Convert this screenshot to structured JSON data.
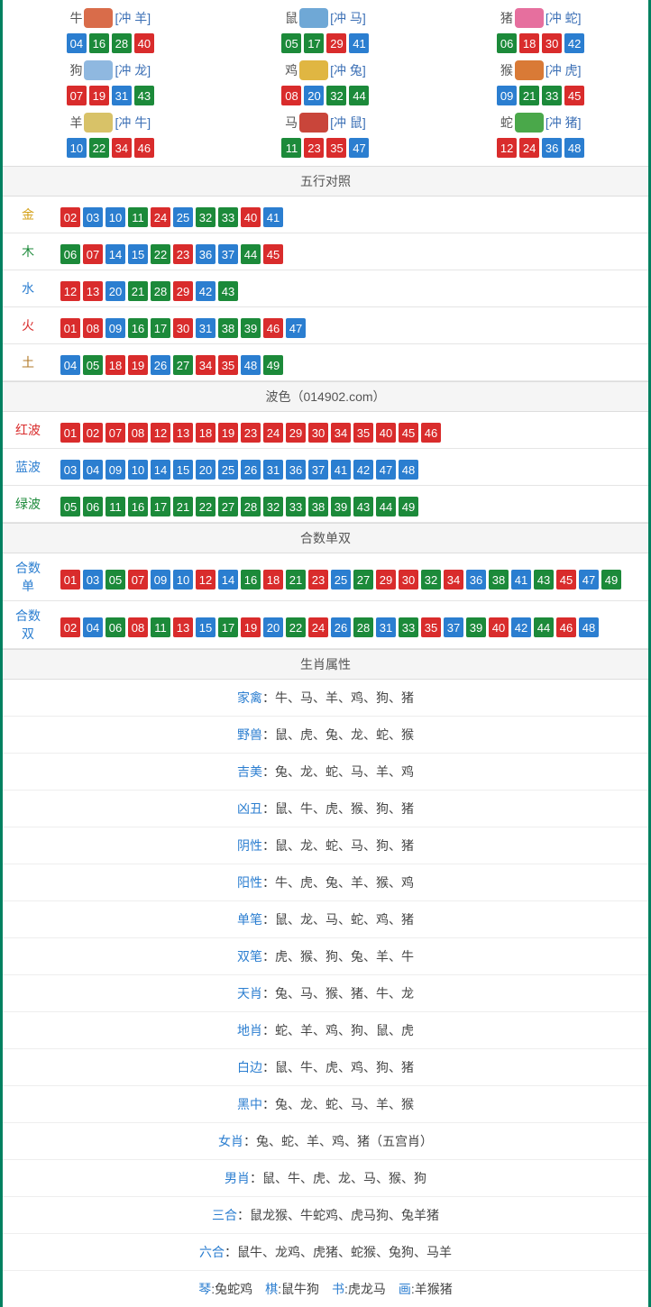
{
  "colors": {
    "red": "#d92c2c",
    "blue": "#2b7ed0",
    "green": "#1c8a3a"
  },
  "zodiac": [
    {
      "name": "牛",
      "icon_color": "#d96c4a",
      "tag": "[冲 羊]",
      "balls": [
        [
          "04",
          "blue"
        ],
        [
          "16",
          "green"
        ],
        [
          "28",
          "green"
        ],
        [
          "40",
          "red"
        ]
      ]
    },
    {
      "name": "鼠",
      "icon_color": "#6fa8d6",
      "tag": "[冲 马]",
      "balls": [
        [
          "05",
          "green"
        ],
        [
          "17",
          "green"
        ],
        [
          "29",
          "red"
        ],
        [
          "41",
          "blue"
        ]
      ]
    },
    {
      "name": "猪",
      "icon_color": "#e66f9e",
      "tag": "[冲 蛇]",
      "balls": [
        [
          "06",
          "green"
        ],
        [
          "18",
          "red"
        ],
        [
          "30",
          "red"
        ],
        [
          "42",
          "blue"
        ]
      ]
    },
    {
      "name": "狗",
      "icon_color": "#8fb8e0",
      "tag": "[冲 龙]",
      "balls": [
        [
          "07",
          "red"
        ],
        [
          "19",
          "red"
        ],
        [
          "31",
          "blue"
        ],
        [
          "43",
          "green"
        ]
      ]
    },
    {
      "name": "鸡",
      "icon_color": "#e0b642",
      "tag": "[冲 兔]",
      "balls": [
        [
          "08",
          "red"
        ],
        [
          "20",
          "blue"
        ],
        [
          "32",
          "green"
        ],
        [
          "44",
          "green"
        ]
      ]
    },
    {
      "name": "猴",
      "icon_color": "#d97a36",
      "tag": "[冲 虎]",
      "balls": [
        [
          "09",
          "blue"
        ],
        [
          "21",
          "green"
        ],
        [
          "33",
          "green"
        ],
        [
          "45",
          "red"
        ]
      ]
    },
    {
      "name": "羊",
      "icon_color": "#d8c268",
      "tag": "[冲 牛]",
      "balls": [
        [
          "10",
          "blue"
        ],
        [
          "22",
          "green"
        ],
        [
          "34",
          "red"
        ],
        [
          "46",
          "red"
        ]
      ]
    },
    {
      "name": "马",
      "icon_color": "#c9453a",
      "tag": "[冲 鼠]",
      "balls": [
        [
          "11",
          "green"
        ],
        [
          "23",
          "red"
        ],
        [
          "35",
          "red"
        ],
        [
          "47",
          "blue"
        ]
      ]
    },
    {
      "name": "蛇",
      "icon_color": "#4aa84a",
      "tag": "[冲 猪]",
      "balls": [
        [
          "12",
          "red"
        ],
        [
          "24",
          "red"
        ],
        [
          "36",
          "blue"
        ],
        [
          "48",
          "blue"
        ]
      ]
    }
  ],
  "wuxing": {
    "title": "五行对照",
    "rows": [
      {
        "label": "金",
        "cls": "c-gold",
        "balls": [
          [
            "02",
            "red"
          ],
          [
            "03",
            "blue"
          ],
          [
            "10",
            "blue"
          ],
          [
            "11",
            "green"
          ],
          [
            "24",
            "red"
          ],
          [
            "25",
            "blue"
          ],
          [
            "32",
            "green"
          ],
          [
            "33",
            "green"
          ],
          [
            "40",
            "red"
          ],
          [
            "41",
            "blue"
          ]
        ]
      },
      {
        "label": "木",
        "cls": "c-wood",
        "balls": [
          [
            "06",
            "green"
          ],
          [
            "07",
            "red"
          ],
          [
            "14",
            "blue"
          ],
          [
            "15",
            "blue"
          ],
          [
            "22",
            "green"
          ],
          [
            "23",
            "red"
          ],
          [
            "36",
            "blue"
          ],
          [
            "37",
            "blue"
          ],
          [
            "44",
            "green"
          ],
          [
            "45",
            "red"
          ]
        ]
      },
      {
        "label": "水",
        "cls": "c-water",
        "balls": [
          [
            "12",
            "red"
          ],
          [
            "13",
            "red"
          ],
          [
            "20",
            "blue"
          ],
          [
            "21",
            "green"
          ],
          [
            "28",
            "green"
          ],
          [
            "29",
            "red"
          ],
          [
            "42",
            "blue"
          ],
          [
            "43",
            "green"
          ]
        ]
      },
      {
        "label": "火",
        "cls": "c-fire",
        "balls": [
          [
            "01",
            "red"
          ],
          [
            "08",
            "red"
          ],
          [
            "09",
            "blue"
          ],
          [
            "16",
            "green"
          ],
          [
            "17",
            "green"
          ],
          [
            "30",
            "red"
          ],
          [
            "31",
            "blue"
          ],
          [
            "38",
            "green"
          ],
          [
            "39",
            "green"
          ],
          [
            "46",
            "red"
          ],
          [
            "47",
            "blue"
          ]
        ]
      },
      {
        "label": "土",
        "cls": "c-earth",
        "balls": [
          [
            "04",
            "blue"
          ],
          [
            "05",
            "green"
          ],
          [
            "18",
            "red"
          ],
          [
            "19",
            "red"
          ],
          [
            "26",
            "blue"
          ],
          [
            "27",
            "green"
          ],
          [
            "34",
            "red"
          ],
          [
            "35",
            "red"
          ],
          [
            "48",
            "blue"
          ],
          [
            "49",
            "green"
          ]
        ]
      }
    ]
  },
  "bose": {
    "title": "波色（014902.com）",
    "rows": [
      {
        "label": "红波",
        "cls": "c-red",
        "balls": [
          [
            "01",
            "red"
          ],
          [
            "02",
            "red"
          ],
          [
            "07",
            "red"
          ],
          [
            "08",
            "red"
          ],
          [
            "12",
            "red"
          ],
          [
            "13",
            "red"
          ],
          [
            "18",
            "red"
          ],
          [
            "19",
            "red"
          ],
          [
            "23",
            "red"
          ],
          [
            "24",
            "red"
          ],
          [
            "29",
            "red"
          ],
          [
            "30",
            "red"
          ],
          [
            "34",
            "red"
          ],
          [
            "35",
            "red"
          ],
          [
            "40",
            "red"
          ],
          [
            "45",
            "red"
          ],
          [
            "46",
            "red"
          ]
        ]
      },
      {
        "label": "蓝波",
        "cls": "c-blue",
        "balls": [
          [
            "03",
            "blue"
          ],
          [
            "04",
            "blue"
          ],
          [
            "09",
            "blue"
          ],
          [
            "10",
            "blue"
          ],
          [
            "14",
            "blue"
          ],
          [
            "15",
            "blue"
          ],
          [
            "20",
            "blue"
          ],
          [
            "25",
            "blue"
          ],
          [
            "26",
            "blue"
          ],
          [
            "31",
            "blue"
          ],
          [
            "36",
            "blue"
          ],
          [
            "37",
            "blue"
          ],
          [
            "41",
            "blue"
          ],
          [
            "42",
            "blue"
          ],
          [
            "47",
            "blue"
          ],
          [
            "48",
            "blue"
          ]
        ]
      },
      {
        "label": "绿波",
        "cls": "c-green",
        "balls": [
          [
            "05",
            "green"
          ],
          [
            "06",
            "green"
          ],
          [
            "11",
            "green"
          ],
          [
            "16",
            "green"
          ],
          [
            "17",
            "green"
          ],
          [
            "21",
            "green"
          ],
          [
            "22",
            "green"
          ],
          [
            "27",
            "green"
          ],
          [
            "28",
            "green"
          ],
          [
            "32",
            "green"
          ],
          [
            "33",
            "green"
          ],
          [
            "38",
            "green"
          ],
          [
            "39",
            "green"
          ],
          [
            "43",
            "green"
          ],
          [
            "44",
            "green"
          ],
          [
            "49",
            "green"
          ]
        ]
      }
    ]
  },
  "heshu": {
    "title": "合数单双",
    "rows": [
      {
        "label": "合数单",
        "cls": "c-blue",
        "balls": [
          [
            "01",
            "red"
          ],
          [
            "03",
            "blue"
          ],
          [
            "05",
            "green"
          ],
          [
            "07",
            "red"
          ],
          [
            "09",
            "blue"
          ],
          [
            "10",
            "blue"
          ],
          [
            "12",
            "red"
          ],
          [
            "14",
            "blue"
          ],
          [
            "16",
            "green"
          ],
          [
            "18",
            "red"
          ],
          [
            "21",
            "green"
          ],
          [
            "23",
            "red"
          ],
          [
            "25",
            "blue"
          ],
          [
            "27",
            "green"
          ],
          [
            "29",
            "red"
          ],
          [
            "30",
            "red"
          ],
          [
            "32",
            "green"
          ],
          [
            "34",
            "red"
          ],
          [
            "36",
            "blue"
          ],
          [
            "38",
            "green"
          ],
          [
            "41",
            "blue"
          ],
          [
            "43",
            "green"
          ],
          [
            "45",
            "red"
          ],
          [
            "47",
            "blue"
          ],
          [
            "49",
            "green"
          ]
        ]
      },
      {
        "label": "合数双",
        "cls": "c-blue",
        "balls": [
          [
            "02",
            "red"
          ],
          [
            "04",
            "blue"
          ],
          [
            "06",
            "green"
          ],
          [
            "08",
            "red"
          ],
          [
            "11",
            "green"
          ],
          [
            "13",
            "red"
          ],
          [
            "15",
            "blue"
          ],
          [
            "17",
            "green"
          ],
          [
            "19",
            "red"
          ],
          [
            "20",
            "blue"
          ],
          [
            "22",
            "green"
          ],
          [
            "24",
            "red"
          ],
          [
            "26",
            "blue"
          ],
          [
            "28",
            "green"
          ],
          [
            "31",
            "blue"
          ],
          [
            "33",
            "green"
          ],
          [
            "35",
            "red"
          ],
          [
            "37",
            "blue"
          ],
          [
            "39",
            "green"
          ],
          [
            "40",
            "red"
          ],
          [
            "42",
            "blue"
          ],
          [
            "44",
            "green"
          ],
          [
            "46",
            "red"
          ],
          [
            "48",
            "blue"
          ]
        ]
      }
    ]
  },
  "attrs": {
    "title": "生肖属性",
    "rows": [
      {
        "key": "家禽",
        "val": "牛、马、羊、鸡、狗、猪"
      },
      {
        "key": "野兽",
        "val": "鼠、虎、兔、龙、蛇、猴"
      },
      {
        "key": "吉美",
        "val": "兔、龙、蛇、马、羊、鸡"
      },
      {
        "key": "凶丑",
        "val": "鼠、牛、虎、猴、狗、猪"
      },
      {
        "key": "阴性",
        "val": "鼠、龙、蛇、马、狗、猪"
      },
      {
        "key": "阳性",
        "val": "牛、虎、兔、羊、猴、鸡"
      },
      {
        "key": "单笔",
        "val": "鼠、龙、马、蛇、鸡、猪"
      },
      {
        "key": "双笔",
        "val": "虎、猴、狗、兔、羊、牛"
      },
      {
        "key": "天肖",
        "val": "兔、马、猴、猪、牛、龙"
      },
      {
        "key": "地肖",
        "val": "蛇、羊、鸡、狗、鼠、虎"
      },
      {
        "key": "白边",
        "val": "鼠、牛、虎、鸡、狗、猪"
      },
      {
        "key": "黑中",
        "val": "兔、龙、蛇、马、羊、猴"
      },
      {
        "key": "女肖",
        "val": "兔、蛇、羊、鸡、猪（五宫肖）"
      },
      {
        "key": "男肖",
        "val": "鼠、牛、虎、龙、马、猴、狗"
      },
      {
        "key": "三合",
        "val": "鼠龙猴、牛蛇鸡、虎马狗、兔羊猪"
      },
      {
        "key": "六合",
        "val": "鼠牛、龙鸡、虎猪、蛇猴、兔狗、马羊"
      }
    ],
    "footer_parts": [
      {
        "key": "琴",
        "val": "兔蛇鸡"
      },
      {
        "key": "棋",
        "val": "鼠牛狗"
      },
      {
        "key": "书",
        "val": "虎龙马"
      },
      {
        "key": "画",
        "val": "羊猴猪"
      }
    ]
  }
}
